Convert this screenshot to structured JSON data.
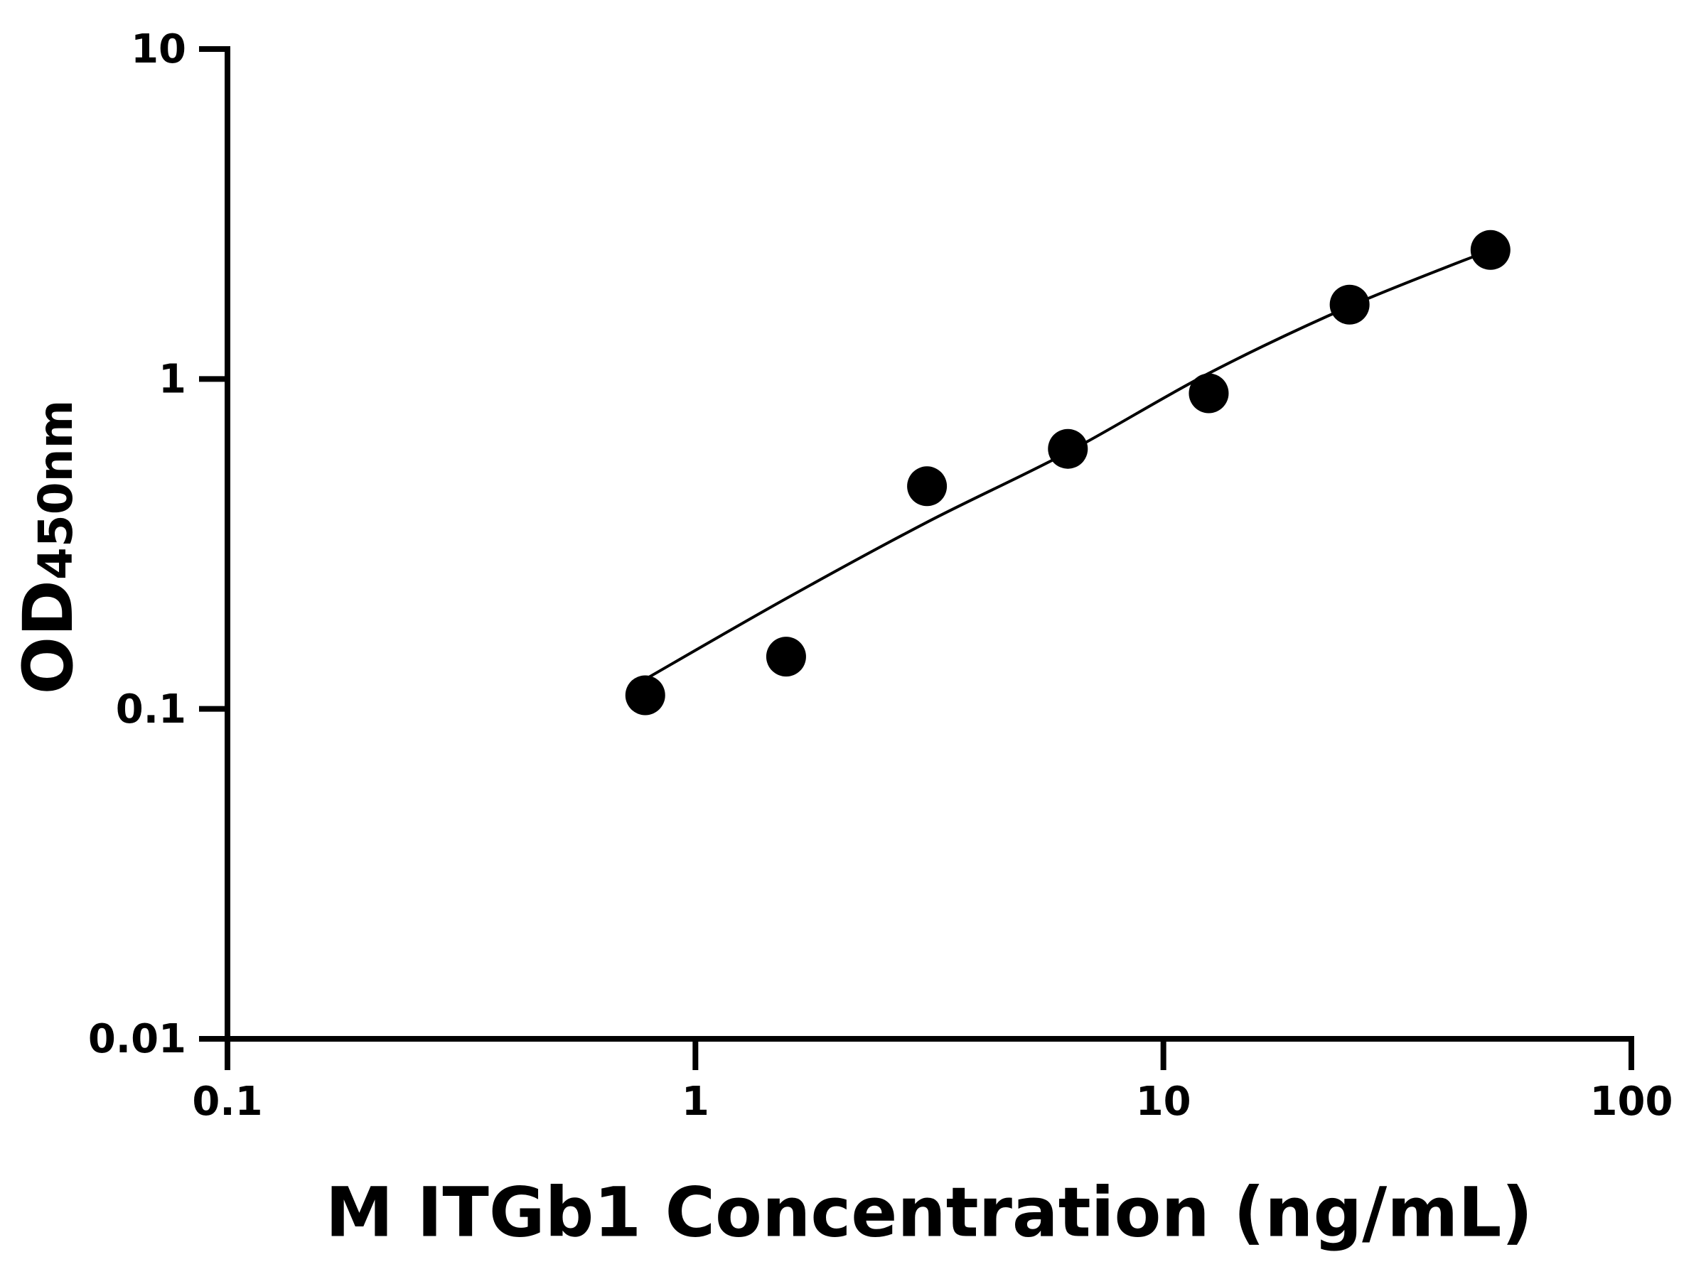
{
  "chart_data": {
    "type": "scatter",
    "xlabel": "M ITGb1 Concentration (ng/mL)",
    "ylabel": "OD",
    "ylabel_subscript": "450nm",
    "x": [
      0.78125,
      1.5625,
      3.125,
      6.25,
      12.5,
      25,
      50
    ],
    "values": [
      0.11,
      0.144,
      0.473,
      0.614,
      0.905,
      1.68,
      2.46
    ],
    "color": "#000000",
    "fit": {
      "x": [
        0.78125,
        1.5625,
        3.125,
        6.25,
        12.5,
        25,
        50
      ],
      "values": [
        0.123,
        0.216,
        0.368,
        0.6,
        1.04,
        1.66,
        2.46
      ],
      "color": "#000000"
    },
    "xscale": "log",
    "yscale": "log",
    "xlim": [
      0.1,
      100
    ],
    "xticks": [
      0.1,
      1,
      10,
      100
    ],
    "ylim": [
      0.01,
      10
    ],
    "yticks": [
      0.01,
      0.1,
      1,
      10
    ],
    "grid": false
  }
}
